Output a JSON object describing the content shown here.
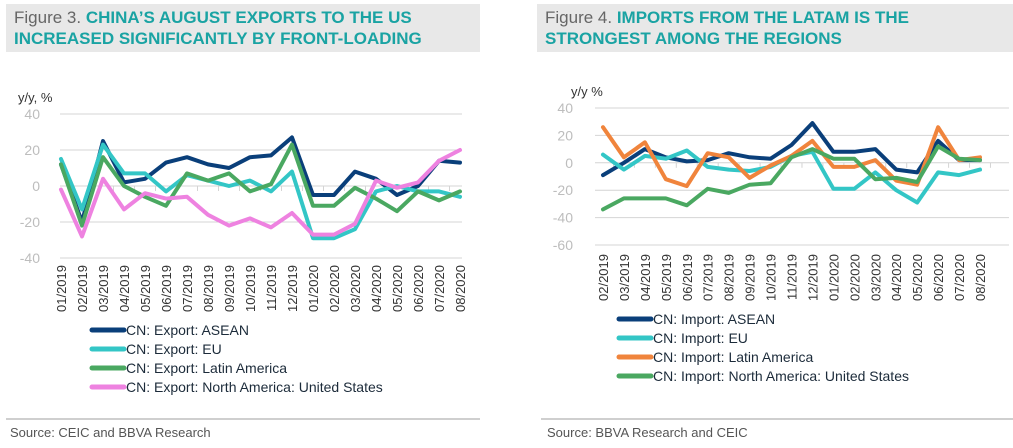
{
  "figures": [
    {
      "fig_label": "Figure 3.",
      "title_line1": "CHINA’S AUGUST EXPORTS TO THE US",
      "title_line2": "INCREASED SIGNIFICANTLY BY FRONT-LOADING",
      "source": "Source: CEIC and BBVA Research"
    },
    {
      "fig_label": "Figure 4.",
      "title_line1": "IMPORTS FROM THE LATAM IS THE",
      "title_line2": "STRONGEST AMONG THE REGIONS",
      "source": "Source: BBVA Research and CEIC"
    }
  ],
  "chart_data": [
    {
      "type": "line",
      "title": "CHINA’S AUGUST EXPORTS TO THE US INCREASED SIGNIFICANTLY BY FRONT-LOADING",
      "ylabel": "y/y, %",
      "xlabel": "",
      "ylim": [
        -40,
        40
      ],
      "yticks": [
        40,
        20,
        0,
        -20,
        -40
      ],
      "grid": true,
      "legend": "bottom",
      "categories": [
        "01/2019",
        "02/2019",
        "03/2019",
        "04/2019",
        "05/2019",
        "06/2019",
        "07/2019",
        "08/2019",
        "09/2019",
        "10/2019",
        "11/2019",
        "12/2019",
        "01/2020",
        "02/2020",
        "03/2020",
        "04/2020",
        "05/2020",
        "06/2020",
        "07/2020",
        "08/2020"
      ],
      "series": [
        {
          "name": "CN: Export: ASEAN",
          "color": "#0a3f7a",
          "values": [
            12,
            -20,
            25,
            2,
            4,
            13,
            16,
            12,
            10,
            16,
            17,
            27,
            -5,
            -5,
            8,
            4,
            -5,
            0,
            14,
            13
          ]
        },
        {
          "name": "CN: Export: EU",
          "color": "#33c6c6",
          "values": [
            15,
            -13,
            23,
            7,
            7,
            -3,
            6,
            3,
            0,
            3,
            -3,
            8,
            -29,
            -29,
            -24,
            -3,
            0,
            -3,
            -3,
            -6
          ]
        },
        {
          "name": "CN: Export: Latin America",
          "color": "#4aa861",
          "values": [
            12,
            -22,
            16,
            0,
            -6,
            -11,
            7,
            3,
            7,
            -3,
            1,
            23,
            -11,
            -11,
            -1,
            -7,
            -14,
            -3,
            -8,
            -3
          ]
        },
        {
          "name": "CN: Export: North America: United States",
          "color": "#ee82e0",
          "values": [
            -2,
            -28,
            4,
            -13,
            -4,
            -7,
            -6,
            -16,
            -22,
            -18,
            -23,
            -15,
            -27,
            -27,
            -21,
            3,
            -1,
            2,
            14,
            20
          ]
        }
      ]
    },
    {
      "type": "line",
      "title": "IMPORTS FROM THE LATAM IS THE STRONGEST AMONG THE REGIONS",
      "ylabel": "y/y %",
      "xlabel": "",
      "ylim": [
        -60,
        40
      ],
      "yticks": [
        40,
        20,
        0,
        -20,
        -40,
        -60
      ],
      "grid": true,
      "legend": "bottom",
      "categories": [
        "02/2019",
        "03/2019",
        "04/2019",
        "05/2019",
        "06/2019",
        "07/2019",
        "08/2019",
        "09/2019",
        "10/2019",
        "11/2019",
        "12/2019",
        "01/2020",
        "02/2020",
        "03/2020",
        "04/2020",
        "05/2020",
        "06/2020",
        "07/2020",
        "08/2020"
      ],
      "series": [
        {
          "name": "CN: Import: ASEAN",
          "color": "#0a3f7a",
          "values": [
            -9,
            0,
            10,
            4,
            1,
            2,
            7,
            4,
            3,
            13,
            29,
            8,
            8,
            10,
            -5,
            -7,
            16,
            2,
            2
          ]
        },
        {
          "name": "CN: Import: EU",
          "color": "#33c6c6",
          "values": [
            6,
            -5,
            5,
            3,
            9,
            -3,
            -5,
            -6,
            -3,
            5,
            8,
            -19,
            -19,
            -7,
            -20,
            -29,
            -7,
            -9,
            -5
          ]
        },
        {
          "name": "CN: Import: Latin America",
          "color": "#f0843c",
          "values": [
            26,
            4,
            15,
            -12,
            -17,
            7,
            4,
            -11,
            -2,
            5,
            16,
            -3,
            -3,
            2,
            -13,
            -16,
            26,
            2,
            4
          ]
        },
        {
          "name": "CN: Import: North America: United States",
          "color": "#4aa861",
          "values": [
            -34,
            -26,
            -26,
            -26,
            -31,
            -19,
            -22,
            -16,
            -15,
            4,
            10,
            3,
            3,
            -12,
            -11,
            -14,
            12,
            3,
            2
          ]
        }
      ]
    }
  ]
}
